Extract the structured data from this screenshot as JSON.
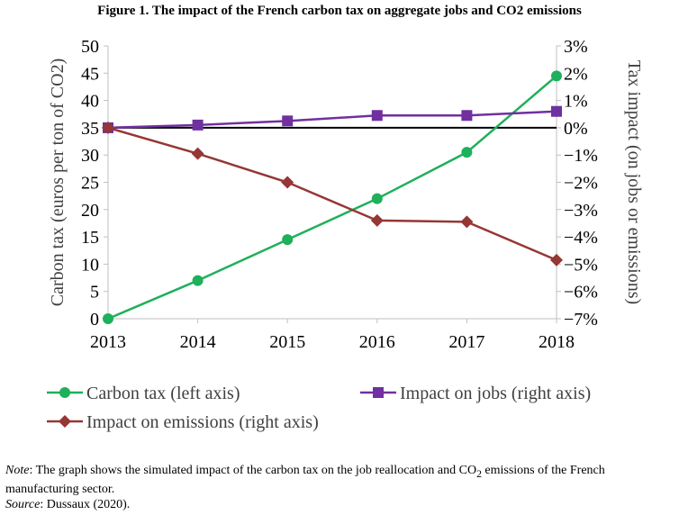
{
  "figure_title": "Figure 1. The impact of the French carbon tax on aggregate jobs and CO2 emissions",
  "notes": {
    "note_label": "Note",
    "note_text_1": ": The graph shows the simulated impact of the carbon tax on the job reallocation and CO",
    "note_sub": "2",
    "note_text_2": " emissions of the French manufacturing sector.",
    "source_label": "Source",
    "source_text": ": Dussaux (2020)."
  },
  "chart_data": {
    "type": "line",
    "title": "Figure 1. The impact of the French carbon tax on aggregate jobs and CO2 emissions",
    "categories": [
      "2013",
      "2014",
      "2015",
      "2016",
      "2017",
      "2018"
    ],
    "left_axis": {
      "label": "Carbon tax (euros per ton of CO2)",
      "range": [
        0,
        50
      ],
      "ticks": [
        "0",
        "5",
        "10",
        "15",
        "20",
        "25",
        "30",
        "35",
        "40",
        "45",
        "50"
      ]
    },
    "right_axis": {
      "label": "Tax impact (on jobs or emissions)",
      "range": [
        -7,
        3
      ],
      "ticks": [
        "-7%",
        "-6%",
        "-5%",
        "-4%",
        "-3%",
        "-2%",
        "-1%",
        "0%",
        "1%",
        "2%",
        "3%"
      ]
    },
    "series": [
      {
        "name": "Carbon tax (left axis)",
        "axis": "left",
        "color": "#1fb05a",
        "marker": "circle",
        "values": [
          0,
          7,
          14.5,
          22,
          30.5,
          44.5
        ]
      },
      {
        "name": "Impact on jobs (right axis)",
        "axis": "right",
        "color": "#7030a0",
        "marker": "square",
        "values": [
          0,
          0.1,
          0.25,
          0.45,
          0.45,
          0.6
        ]
      },
      {
        "name": "Impact on emissions (right axis)",
        "axis": "right",
        "color": "#953735",
        "marker": "diamond",
        "values": [
          0,
          -0.95,
          -2.0,
          -3.4,
          -3.45,
          -4.85
        ]
      }
    ],
    "reference_line": {
      "axis": "right",
      "value": 0,
      "color": "#000000"
    },
    "grid": false,
    "legend_position": "bottom"
  }
}
